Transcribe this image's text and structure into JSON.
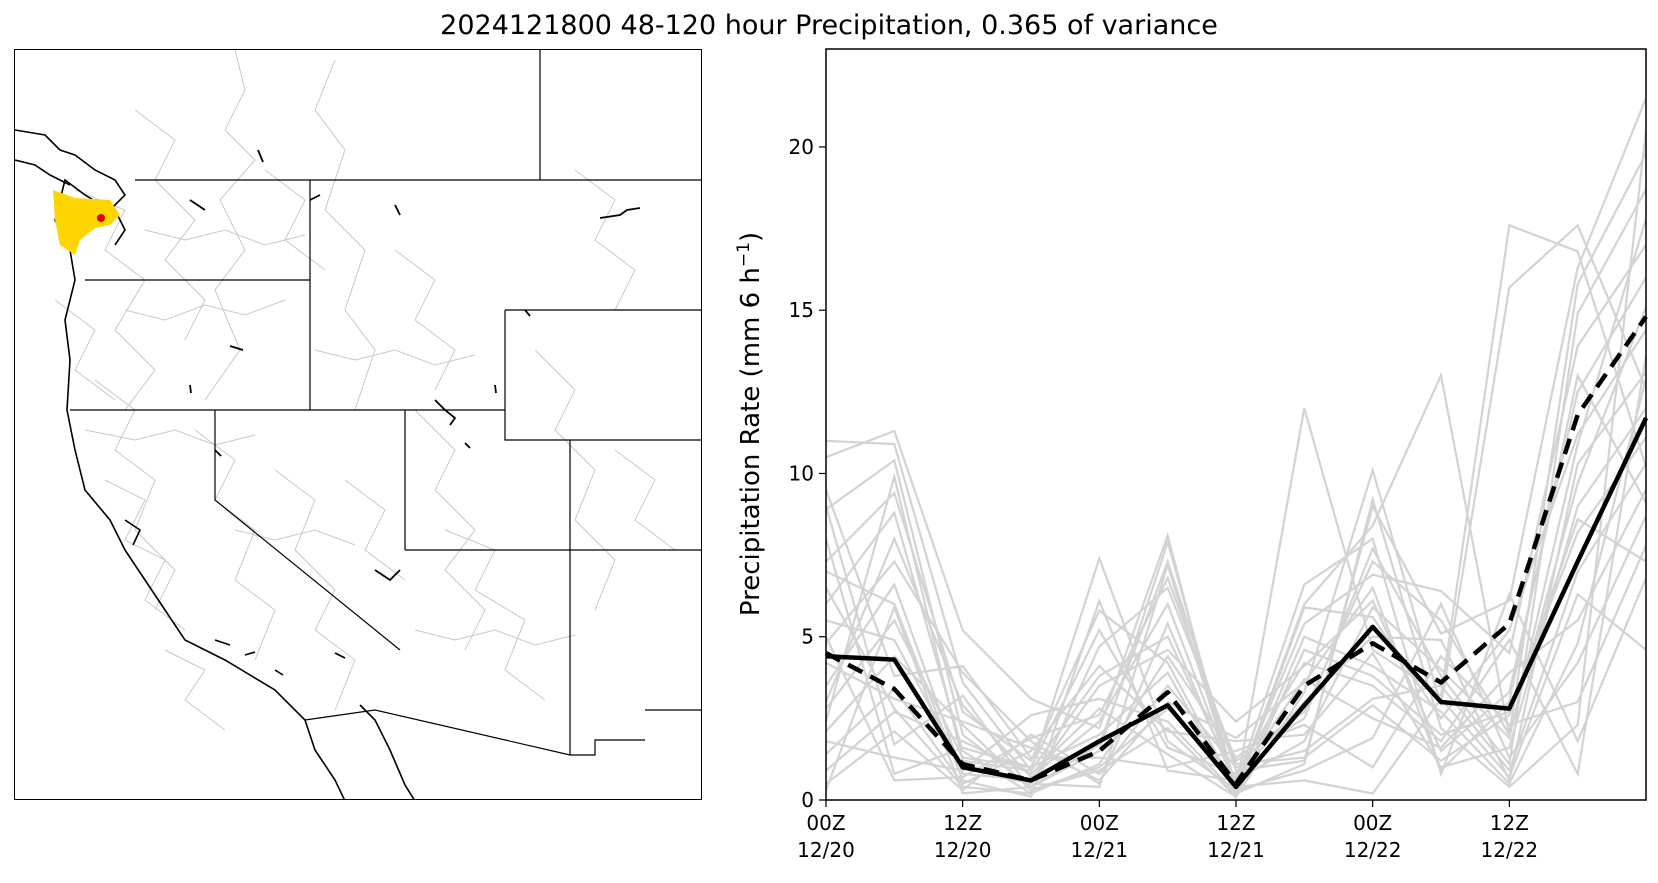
{
  "figure": {
    "title": "2024121800 48-120 hour Precipitation, 0.365 of variance"
  },
  "map": {
    "region": "western United States",
    "highlight_colors": [
      "#ffd500",
      "#e60000"
    ],
    "state_line_color": "#000000",
    "basin_line_color": "#c8c8c8"
  },
  "chart_data": {
    "type": "line",
    "title": "",
    "xlabel": "",
    "ylabel": "Precipitation Rate (mm 6 h",
    "ylabel_superscript": "−1",
    "ylabel_suffix": ")",
    "ylim": [
      0,
      23
    ],
    "xlim": [
      0,
      12
    ],
    "grid": false,
    "x_ticks": [
      {
        "x": 0,
        "line1": "00Z",
        "line2": "12/20"
      },
      {
        "x": 2,
        "line1": "12Z",
        "line2": "12/20"
      },
      {
        "x": 4,
        "line1": "00Z",
        "line2": "12/21"
      },
      {
        "x": 6,
        "line1": "12Z",
        "line2": "12/21"
      },
      {
        "x": 8,
        "line1": "00Z",
        "line2": "12/22"
      },
      {
        "x": 10,
        "line1": "12Z",
        "line2": "12/22"
      }
    ],
    "y_ticks": [
      0,
      5,
      10,
      15,
      20
    ],
    "x": [
      0,
      1,
      2,
      3,
      4,
      5,
      6,
      7,
      8,
      9,
      10,
      11,
      12
    ],
    "series": [
      {
        "style": "solid-black",
        "color": "#000000",
        "values": [
          4.4,
          4.3,
          1.0,
          0.6,
          1.8,
          2.9,
          0.4,
          2.9,
          5.3,
          3.0,
          2.8,
          7.3,
          11.7
        ]
      },
      {
        "style": "dashed-black",
        "color": "#000000",
        "values": [
          4.5,
          3.4,
          1.1,
          0.6,
          1.5,
          3.3,
          0.5,
          3.5,
          4.8,
          3.6,
          5.4,
          11.8,
          14.8
        ]
      }
    ],
    "ensemble_color": "#d3d3d3",
    "ensemble_members": [
      [
        11.0,
        10.9,
        3.6,
        0.9,
        7.4,
        1.8,
        0.3,
        12.0,
        4.6,
        3.2,
        17.6,
        16.8,
        10.2
      ],
      [
        10.5,
        11.3,
        5.2,
        3.1,
        2.2,
        8.1,
        0.1,
        3.3,
        10.1,
        2.9,
        15.7,
        17.6,
        12.6
      ],
      [
        8.9,
        10.4,
        2.0,
        0.4,
        1.7,
        7.3,
        0.9,
        1.2,
        9.0,
        5.1,
        6.1,
        16.3,
        21.5
      ],
      [
        7.3,
        9.4,
        2.7,
        1.2,
        5.8,
        4.2,
        0.3,
        6.0,
        8.4,
        13.0,
        2.0,
        15.8,
        19.8
      ],
      [
        6.0,
        8.8,
        1.5,
        0.2,
        4.7,
        6.5,
        1.2,
        2.5,
        7.7,
        3.8,
        1.1,
        14.9,
        18.7
      ],
      [
        4.8,
        7.3,
        3.9,
        1.8,
        0.5,
        5.4,
        0.4,
        5.4,
        6.9,
        6.4,
        4.5,
        13.9,
        17.0
      ],
      [
        3.5,
        6.6,
        0.8,
        0.6,
        3.5,
        4.6,
        2.4,
        4.1,
        6.1,
        1.5,
        3.3,
        12.5,
        16.0
      ],
      [
        2.8,
        5.5,
        1.3,
        1.0,
        2.0,
        3.9,
        0.2,
        5.9,
        5.6,
        2.5,
        5.2,
        11.2,
        14.4
      ],
      [
        2.1,
        4.4,
        2.3,
        0.3,
        1.0,
        2.8,
        0.7,
        3.0,
        5.0,
        4.9,
        0.6,
        10.3,
        13.1
      ],
      [
        1.4,
        3.4,
        0.5,
        1.5,
        4.1,
        2.1,
        1.8,
        2.0,
        4.5,
        1.0,
        1.6,
        9.0,
        12.0
      ],
      [
        0.9,
        2.7,
        1.8,
        0.8,
        2.8,
        1.4,
        0.1,
        4.6,
        3.8,
        2.0,
        2.7,
        8.2,
        11.1
      ],
      [
        0.5,
        2.1,
        0.3,
        2.0,
        0.8,
        3.5,
        1.0,
        1.5,
        3.1,
        3.5,
        0.9,
        7.0,
        10.3
      ],
      [
        7.0,
        6.0,
        0.6,
        0.1,
        6.1,
        0.9,
        0.6,
        3.7,
        2.5,
        1.6,
        3.9,
        5.5,
        9.5
      ],
      [
        5.5,
        4.9,
        1.0,
        0.5,
        0.4,
        7.2,
        0.3,
        0.9,
        1.9,
        6.0,
        1.3,
        4.2,
        8.7
      ],
      [
        9.5,
        3.8,
        4.1,
        1.3,
        1.3,
        1.0,
        1.5,
        2.3,
        1.0,
        4.4,
        2.3,
        3.0,
        7.8
      ],
      [
        3.0,
        8.0,
        2.9,
        0.7,
        2.4,
        6.0,
        0.5,
        6.6,
        8.0,
        0.8,
        6.3,
        1.8,
        6.8
      ],
      [
        1.8,
        1.3,
        0.9,
        2.6,
        3.1,
        2.4,
        0.2,
        1.1,
        9.2,
        2.2,
        0.4,
        2.3,
        20.5
      ],
      [
        6.5,
        2.8,
        0.4,
        0.2,
        1.1,
        4.4,
        1.3,
        2.7,
        7.3,
        5.5,
        2.0,
        9.7,
        15.1
      ],
      [
        8.0,
        0.8,
        1.6,
        1.0,
        5.2,
        1.6,
        0.8,
        4.2,
        3.5,
        1.8,
        4.9,
        0.8,
        13.6
      ],
      [
        0.3,
        5.9,
        0.2,
        0.4,
        1.5,
        7.9,
        0.4,
        0.6,
        0.2,
        3.1,
        0.7,
        6.3,
        4.6
      ],
      [
        4.2,
        3.1,
        2.4,
        1.6,
        0.6,
        3.0,
        1.9,
        3.6,
        6.5,
        0.9,
        3.0,
        13.0,
        9.1
      ],
      [
        2.4,
        9.9,
        1.2,
        0.9,
        3.8,
        5.0,
        0.6,
        1.8,
        5.9,
        4.0,
        1.9,
        10.9,
        17.8
      ],
      [
        9.0,
        1.7,
        3.2,
        0.3,
        0.9,
        2.2,
        0.1,
        5.0,
        4.1,
        2.7,
        0.5,
        4.8,
        12.9
      ],
      [
        5.0,
        0.6,
        0.7,
        1.9,
        2.6,
        6.8,
        1.1,
        1.3,
        2.9,
        1.2,
        2.6,
        8.6,
        7.3
      ]
    ]
  }
}
